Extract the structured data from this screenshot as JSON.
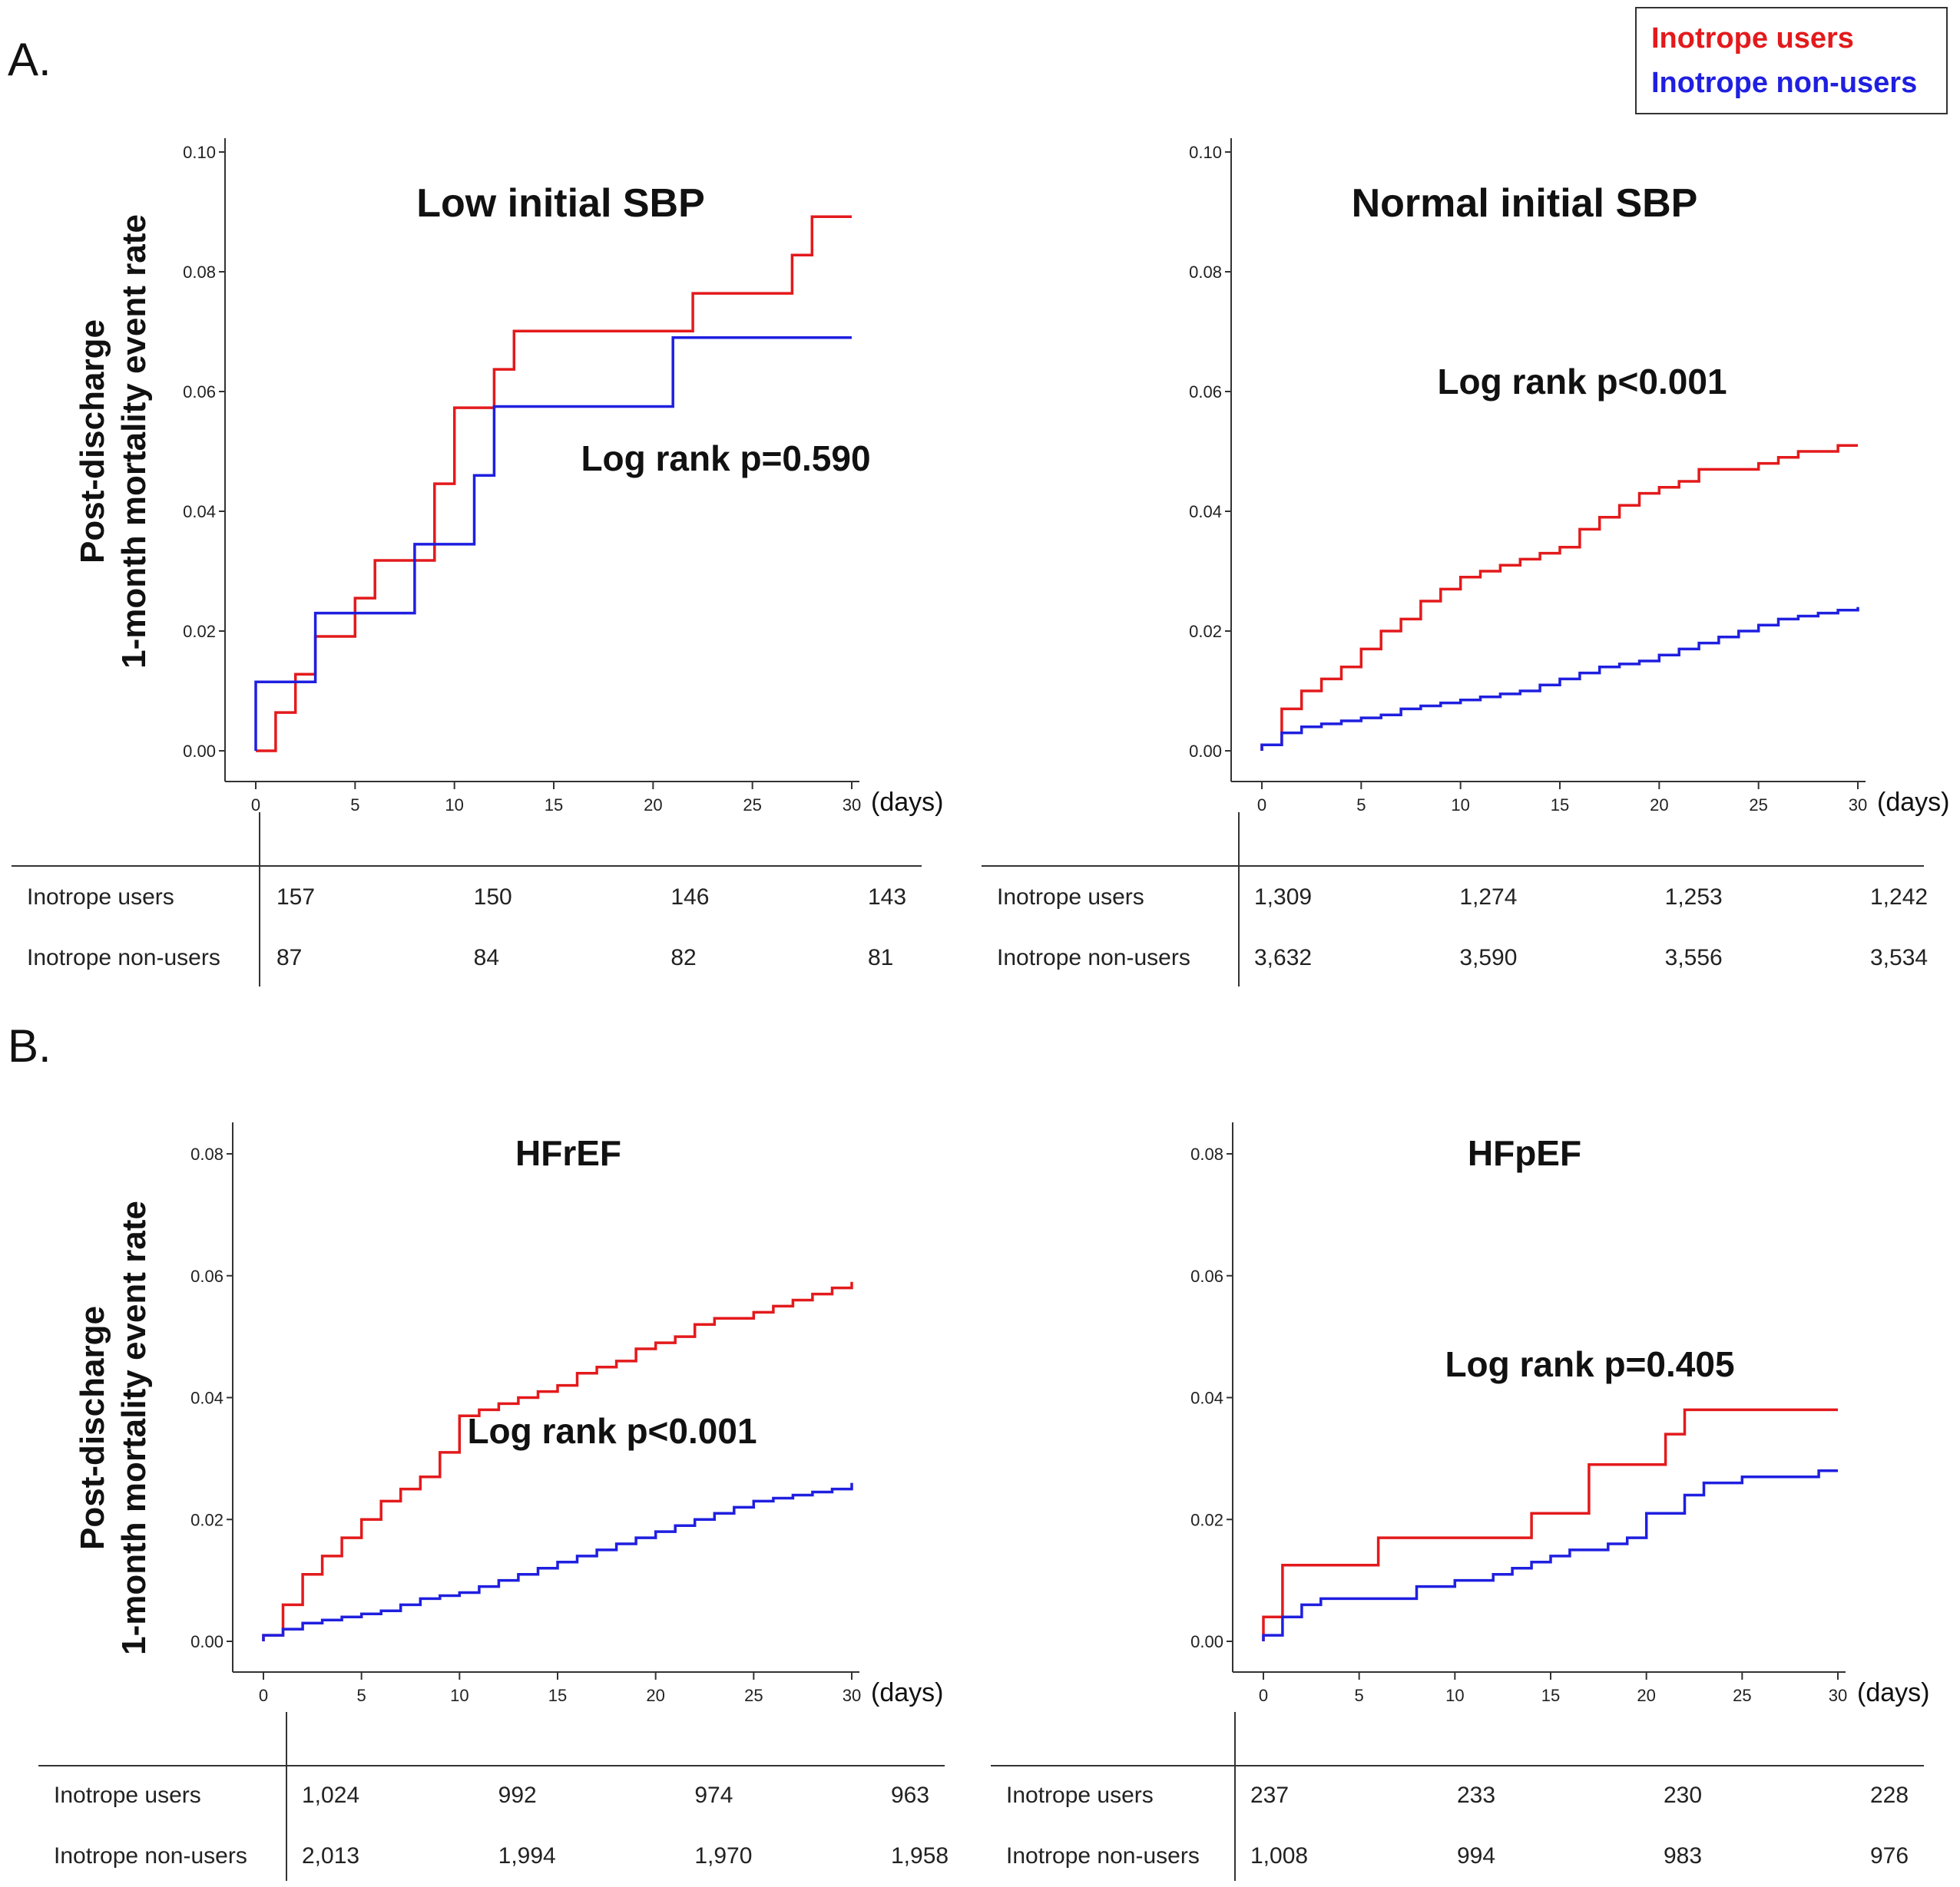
{
  "figure": {
    "panel_a_label": "A.",
    "panel_b_label": "B.",
    "y_axis_label_line1": "Post-discharge",
    "y_axis_label_line2": "1-month mortality event rate",
    "x_units": "(days)",
    "legend": [
      {
        "label": "Inotrope users",
        "color": "#e31a1c"
      },
      {
        "label": "Inotrope non-users",
        "color": "#1f1fe0"
      }
    ]
  },
  "chart_data": [
    {
      "type": "line",
      "id": "low_sbp",
      "title": "Low initial SBP",
      "annotation": "Log rank p=0.590",
      "xlabel": "(days)",
      "ylabel": "Post-discharge 1-month mortality event rate",
      "xlim": [
        0,
        30
      ],
      "ylim": [
        0,
        0.1
      ],
      "xticks": [
        0,
        5,
        10,
        15,
        20,
        25,
        30
      ],
      "yticks": [
        "0.00",
        "0.02",
        "0.04",
        "0.06",
        "0.08",
        "0.10"
      ],
      "series": [
        {
          "name": "Inotrope users",
          "color": "#e31a1c",
          "step": true,
          "x": [
            0,
            1,
            2,
            3,
            5,
            6,
            9,
            10,
            11,
            12,
            13,
            22,
            27,
            28,
            30
          ],
          "y": [
            0,
            0.0064,
            0.0128,
            0.0191,
            0.0255,
            0.0318,
            0.0446,
            0.0573,
            0.0573,
            0.0637,
            0.0701,
            0.0764,
            0.0828,
            0.0892,
            0.0892
          ]
        },
        {
          "name": "Inotrope non-users",
          "color": "#1f1fe0",
          "step": true,
          "x": [
            0,
            3,
            8,
            11,
            12,
            21,
            30
          ],
          "y": [
            0.0115,
            0.023,
            0.0345,
            0.046,
            0.0575,
            0.069,
            0.069
          ]
        }
      ],
      "risk_table": {
        "rows": [
          "Inotrope users",
          "Inotrope non-users"
        ],
        "values": [
          [
            "157",
            "150",
            "146",
            "143"
          ],
          [
            "87",
            "84",
            "82",
            "81"
          ]
        ]
      }
    },
    {
      "type": "line",
      "id": "normal_sbp",
      "title": "Normal initial SBP",
      "annotation": "Log rank p<0.001",
      "xlabel": "(days)",
      "ylabel": "Post-discharge 1-month mortality event rate",
      "xlim": [
        0,
        30
      ],
      "ylim": [
        0,
        0.1
      ],
      "xticks": [
        0,
        5,
        10,
        15,
        20,
        25,
        30
      ],
      "yticks": [
        "0.00",
        "0.02",
        "0.04",
        "0.06",
        "0.08",
        "0.10"
      ],
      "series": [
        {
          "name": "Inotrope users",
          "color": "#e31a1c",
          "step": true,
          "x": [
            0,
            1,
            2,
            3,
            4,
            5,
            6,
            7,
            8,
            9,
            10,
            11,
            12,
            13,
            14,
            15,
            16,
            17,
            18,
            19,
            20,
            21,
            22,
            23,
            24,
            25,
            26,
            27,
            28,
            29,
            30
          ],
          "y": [
            0.001,
            0.007,
            0.01,
            0.012,
            0.014,
            0.017,
            0.02,
            0.022,
            0.025,
            0.027,
            0.029,
            0.03,
            0.031,
            0.032,
            0.033,
            0.034,
            0.037,
            0.039,
            0.041,
            0.043,
            0.044,
            0.045,
            0.047,
            0.047,
            0.047,
            0.048,
            0.049,
            0.05,
            0.05,
            0.051,
            0.051
          ]
        },
        {
          "name": "Inotrope non-users",
          "color": "#1f1fe0",
          "step": true,
          "x": [
            0,
            1,
            2,
            3,
            4,
            5,
            6,
            7,
            8,
            9,
            10,
            11,
            12,
            13,
            14,
            15,
            16,
            17,
            18,
            19,
            20,
            21,
            22,
            23,
            24,
            25,
            26,
            27,
            28,
            29,
            30
          ],
          "y": [
            0.001,
            0.003,
            0.004,
            0.0045,
            0.005,
            0.0055,
            0.006,
            0.007,
            0.0075,
            0.008,
            0.0085,
            0.009,
            0.0095,
            0.01,
            0.011,
            0.012,
            0.013,
            0.014,
            0.0145,
            0.015,
            0.016,
            0.017,
            0.018,
            0.019,
            0.02,
            0.021,
            0.022,
            0.0225,
            0.023,
            0.0235,
            0.024
          ]
        }
      ],
      "risk_table": {
        "rows": [
          "Inotrope users",
          "Inotrope non-users"
        ],
        "values": [
          [
            "1,309",
            "1,274",
            "1,253",
            "1,242"
          ],
          [
            "3,632",
            "3,590",
            "3,556",
            "3,534"
          ]
        ]
      }
    },
    {
      "type": "line",
      "id": "hfref",
      "title": "HFrEF",
      "annotation": "Log rank p<0.001",
      "xlabel": "(days)",
      "ylabel": "Post-discharge 1-month mortality event rate",
      "xlim": [
        0,
        30
      ],
      "ylim": [
        0,
        0.08
      ],
      "xticks": [
        0,
        5,
        10,
        15,
        20,
        25,
        30
      ],
      "yticks": [
        "0.00",
        "0.02",
        "0.04",
        "0.06",
        "0.08"
      ],
      "series": [
        {
          "name": "Inotrope users",
          "color": "#e31a1c",
          "step": true,
          "x": [
            0,
            1,
            2,
            3,
            4,
            5,
            6,
            7,
            8,
            9,
            10,
            11,
            12,
            13,
            14,
            15,
            16,
            17,
            18,
            19,
            20,
            21,
            22,
            23,
            24,
            25,
            26,
            27,
            28,
            29,
            30
          ],
          "y": [
            0.001,
            0.006,
            0.011,
            0.014,
            0.017,
            0.02,
            0.023,
            0.025,
            0.027,
            0.031,
            0.037,
            0.038,
            0.039,
            0.04,
            0.041,
            0.042,
            0.044,
            0.045,
            0.046,
            0.048,
            0.049,
            0.05,
            0.052,
            0.053,
            0.053,
            0.054,
            0.055,
            0.056,
            0.057,
            0.058,
            0.059
          ]
        },
        {
          "name": "Inotrope non-users",
          "color": "#1f1fe0",
          "step": true,
          "x": [
            0,
            1,
            2,
            3,
            4,
            5,
            6,
            7,
            8,
            9,
            10,
            11,
            12,
            13,
            14,
            15,
            16,
            17,
            18,
            19,
            20,
            21,
            22,
            23,
            24,
            25,
            26,
            27,
            28,
            29,
            30
          ],
          "y": [
            0.001,
            0.002,
            0.003,
            0.0035,
            0.004,
            0.0045,
            0.005,
            0.006,
            0.007,
            0.0075,
            0.008,
            0.009,
            0.01,
            0.011,
            0.012,
            0.013,
            0.014,
            0.015,
            0.016,
            0.017,
            0.018,
            0.019,
            0.02,
            0.021,
            0.022,
            0.023,
            0.0235,
            0.024,
            0.0245,
            0.025,
            0.026
          ]
        }
      ],
      "risk_table": {
        "rows": [
          "Inotrope users",
          "Inotrope non-users"
        ],
        "values": [
          [
            "1,024",
            "992",
            "974",
            "963"
          ],
          [
            "2,013",
            "1,994",
            "1,970",
            "1,958"
          ]
        ]
      }
    },
    {
      "type": "line",
      "id": "hfpef",
      "title": "HFpEF",
      "annotation": "Log rank p=0.405",
      "xlabel": "(days)",
      "ylabel": "Post-discharge 1-month mortality event rate",
      "xlim": [
        0,
        30
      ],
      "ylim": [
        0,
        0.08
      ],
      "xticks": [
        0,
        5,
        10,
        15,
        20,
        25,
        30
      ],
      "yticks": [
        "0.00",
        "0.02",
        "0.04",
        "0.06",
        "0.08"
      ],
      "series": [
        {
          "name": "Inotrope users",
          "color": "#e31a1c",
          "step": true,
          "x": [
            0,
            1,
            6,
            14,
            17,
            21,
            22,
            30
          ],
          "y": [
            0.004,
            0.0125,
            0.017,
            0.021,
            0.029,
            0.034,
            0.038,
            0.038
          ]
        },
        {
          "name": "Inotrope non-users",
          "color": "#1f1fe0",
          "step": true,
          "x": [
            0,
            1,
            2,
            3,
            5,
            8,
            10,
            12,
            13,
            14,
            15,
            16,
            17,
            18,
            19,
            20,
            21,
            22,
            23,
            25,
            28,
            29,
            30
          ],
          "y": [
            0.001,
            0.004,
            0.006,
            0.007,
            0.007,
            0.009,
            0.01,
            0.011,
            0.012,
            0.013,
            0.014,
            0.015,
            0.015,
            0.016,
            0.017,
            0.021,
            0.021,
            0.024,
            0.026,
            0.027,
            0.027,
            0.028,
            0.028
          ]
        }
      ],
      "risk_table": {
        "rows": [
          "Inotrope users",
          "Inotrope non-users"
        ],
        "values": [
          [
            "237",
            "233",
            "230",
            "228"
          ],
          [
            "1,008",
            "994",
            "983",
            "976"
          ]
        ]
      }
    }
  ]
}
